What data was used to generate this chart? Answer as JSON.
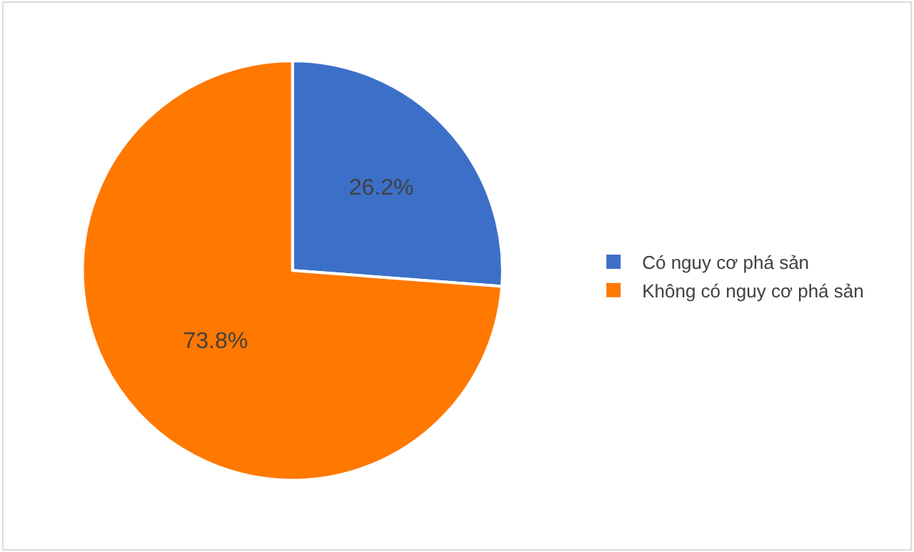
{
  "chart_data": {
    "type": "pie",
    "categories": [
      "Có nguy cơ phá sản",
      "Không có nguy cơ phá sản"
    ],
    "values": [
      26.2,
      73.8
    ],
    "colors": [
      "#3c70c8",
      "#ff7800"
    ],
    "value_labels": [
      "26.2%",
      "73.8%"
    ],
    "legend": "right"
  }
}
